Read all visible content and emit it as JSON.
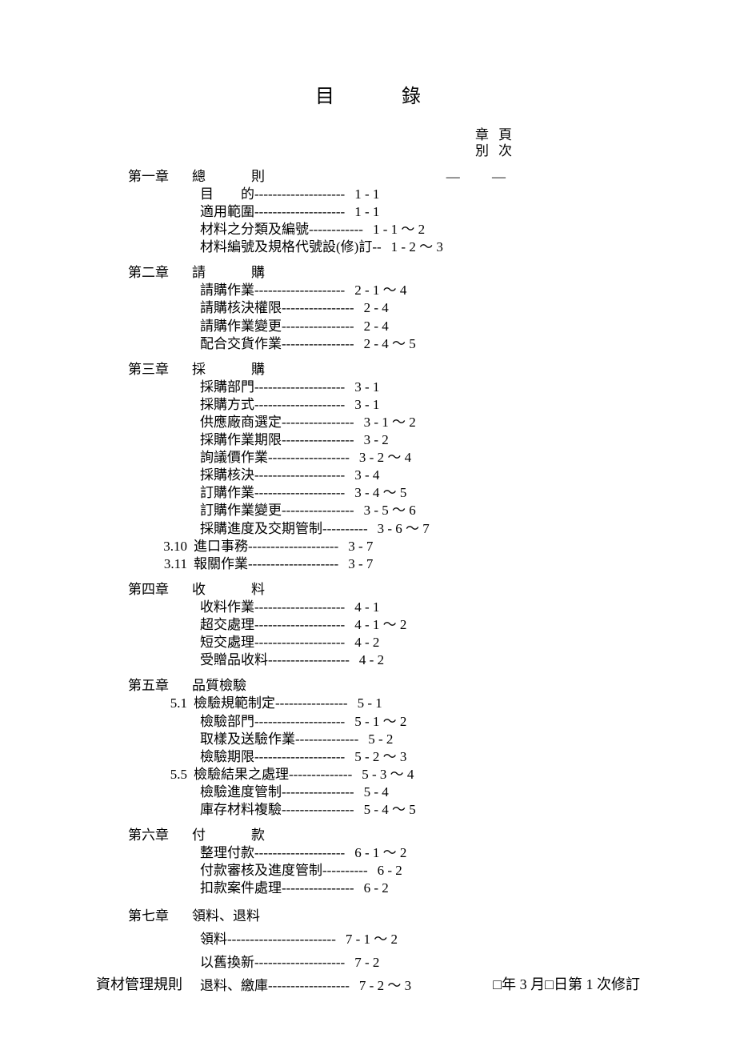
{
  "title": "目　錄",
  "header": {
    "col1a": "章",
    "col1b": "別",
    "col2a": "頁",
    "col2b": "次"
  },
  "chapters": [
    {
      "label": "第一章",
      "title": "總　則",
      "spaced": true,
      "dash": "— —",
      "entries": [
        {
          "num": "",
          "label": "目　　的",
          "dash": "--------------------",
          "page": "1 - 1"
        },
        {
          "num": "",
          "label": "適用範圍",
          "dash": "--------------------",
          "page": "1 - 1"
        },
        {
          "num": "",
          "label": "材料之分類及編號",
          "dash": "------------",
          "page": "1 - 1 ～ 2"
        },
        {
          "num": "",
          "label": "材料編號及規格代號設(修)訂",
          "dash": "--",
          "page": "1 - 2 ～ 3"
        }
      ]
    },
    {
      "label": "第二章",
      "title": "請　購",
      "spaced": true,
      "entries": [
        {
          "num": "",
          "label": "請購作業",
          "dash": "--------------------",
          "page": "2 - 1 ～ 4"
        },
        {
          "num": "",
          "label": "請購核決權限",
          "dash": "----------------",
          "page": "2 - 4"
        },
        {
          "num": "",
          "label": "請購作業變更",
          "dash": "----------------",
          "page": "2 - 4"
        },
        {
          "num": "",
          "label": "配合交貨作業",
          "dash": "----------------",
          "page": "2 - 4 ～ 5"
        }
      ]
    },
    {
      "label": "第三章",
      "title": "採　購",
      "spaced": true,
      "entries": [
        {
          "num": "",
          "label": "採購部門",
          "dash": "--------------------",
          "page": "3 - 1"
        },
        {
          "num": "",
          "label": "採購方式",
          "dash": "--------------------",
          "page": "3 - 1"
        },
        {
          "num": "",
          "label": "供應廠商選定",
          "dash": "----------------",
          "page": "3 - 1 ～ 2"
        },
        {
          "num": "",
          "label": "採購作業期限",
          "dash": "----------------",
          "page": "3 - 2"
        },
        {
          "num": "",
          "label": "詢議價作業",
          "dash": "------------------",
          "page": "3 - 2 ～ 4"
        },
        {
          "num": "",
          "label": "採購核決",
          "dash": "--------------------",
          "page": "3 - 4"
        },
        {
          "num": "",
          "label": "訂購作業",
          "dash": "--------------------",
          "page": "3 - 4 ～ 5"
        },
        {
          "num": "",
          "label": "訂購作業變更",
          "dash": "----------------",
          "page": "3 - 5 ～ 6"
        },
        {
          "num": "",
          "label": "採購進度及交期管制",
          "dash": "----------",
          "page": "3 - 6 ～ 7"
        },
        {
          "num": "3.10",
          "label": "進口事務",
          "dash": "--------------------",
          "page": "3 - 7"
        },
        {
          "num": "3.11",
          "label": "報關作業",
          "dash": "--------------------",
          "page": "3 - 7"
        }
      ]
    },
    {
      "label": "第四章",
      "title": "收　料",
      "spaced": true,
      "entries": [
        {
          "num": "",
          "label": "收料作業",
          "dash": "--------------------",
          "page": "4 - 1"
        },
        {
          "num": "",
          "label": "超交處理",
          "dash": "--------------------",
          "page": "4 - 1 ～ 2"
        },
        {
          "num": "",
          "label": "短交處理",
          "dash": "--------------------",
          "page": "4 - 2"
        },
        {
          "num": "",
          "label": "受贈品收料",
          "dash": "------------------",
          "page": "4 - 2"
        }
      ]
    },
    {
      "label": "第五章",
      "title": "品質檢驗",
      "spaced": false,
      "entries": [
        {
          "num": "5.1",
          "label": "檢驗規範制定",
          "dash": "----------------",
          "page": "5 - 1"
        },
        {
          "num": "",
          "label": "檢驗部門",
          "dash": "--------------------",
          "page": "5 - 1 ～ 2"
        },
        {
          "num": "",
          "label": "取樣及送驗作業",
          "dash": "--------------",
          "page": "5 - 2"
        },
        {
          "num": "",
          "label": "檢驗期限",
          "dash": "--------------------",
          "page": "5 - 2 ～ 3"
        },
        {
          "num": "5.5",
          "label": "檢驗結果之處理",
          "dash": "--------------",
          "page": "5 - 3 ～ 4"
        },
        {
          "num": "",
          "label": "檢驗進度管制",
          "dash": "----------------",
          "page": "5 - 4"
        },
        {
          "num": "",
          "label": "庫存材料複驗",
          "dash": "----------------",
          "page": "5 - 4 ～ 5"
        }
      ]
    },
    {
      "label": "第六章",
      "title": "付　款",
      "spaced": true,
      "entries": [
        {
          "num": "",
          "label": "整理付款",
          "dash": "--------------------",
          "page": "6 - 1 ～ 2"
        },
        {
          "num": "",
          "label": "付款審核及進度管制",
          "dash": "----------",
          "page": "6 - 2"
        },
        {
          "num": "",
          "label": "扣款案件處理",
          "dash": "----------------",
          "page": "6 - 2"
        }
      ]
    },
    {
      "label": "第七章",
      "title": "領料、退料",
      "spaced": false,
      "lineHeight": "1.7",
      "entries": [
        {
          "num": "",
          "label": "領料",
          "dash": "------------------------",
          "page": "7 - 1 ～ 2"
        },
        {
          "num": "",
          "label": "以舊換新",
          "dash": "--------------------",
          "page": "7 - 2"
        },
        {
          "num": "",
          "label": "退料、繳庫",
          "dash": "------------------",
          "page": "7 - 2 ～ 3"
        }
      ]
    }
  ],
  "footer": {
    "left": "資材管理規則",
    "right": "□年 3 月□日第 1 次修訂"
  }
}
